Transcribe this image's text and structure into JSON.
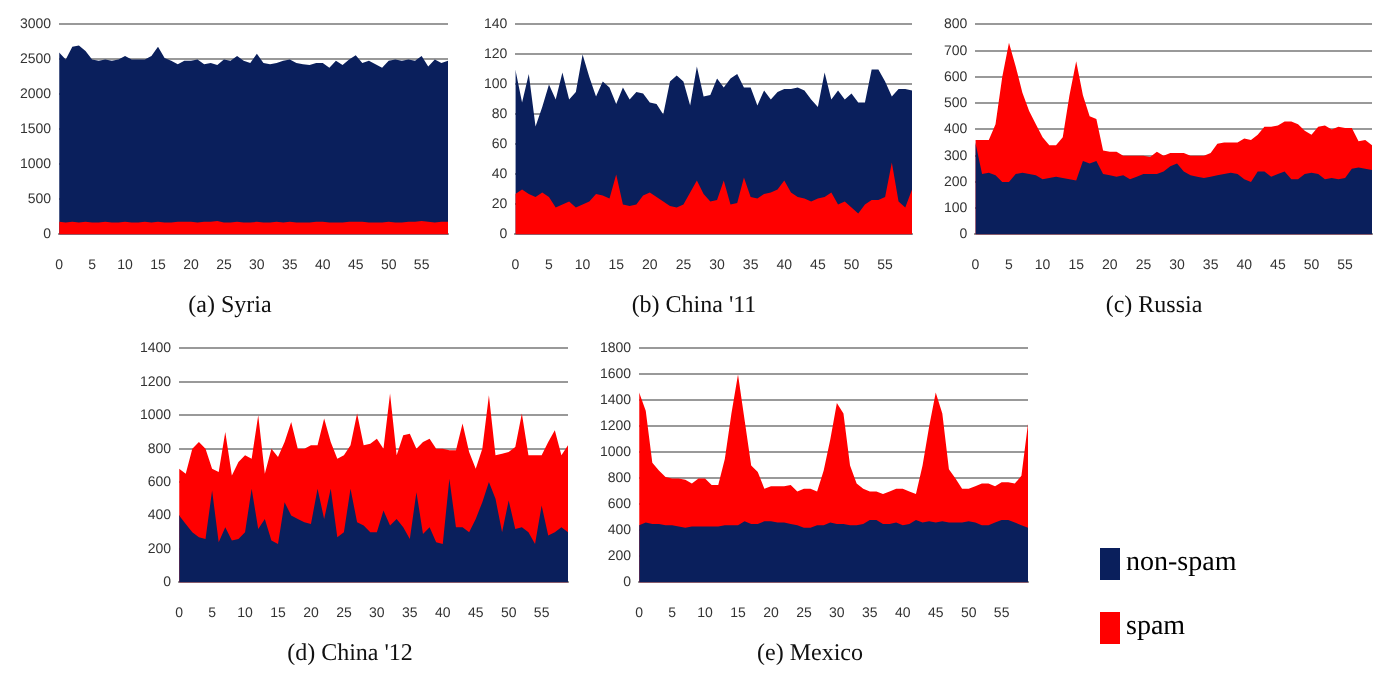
{
  "chart_data": [
    {
      "type": "area",
      "title": "(a) Syria",
      "categories": [
        "0",
        null,
        null,
        null,
        null,
        "5",
        null,
        null,
        null,
        null,
        "10",
        null,
        null,
        null,
        null,
        "15",
        null,
        null,
        null,
        null,
        "20",
        null,
        null,
        null,
        null,
        "25",
        null,
        null,
        null,
        null,
        "30",
        null,
        null,
        null,
        null,
        "35",
        null,
        null,
        null,
        null,
        "40",
        null,
        null,
        null,
        null,
        "45",
        null,
        null,
        null,
        null,
        "50",
        null,
        null,
        null,
        null,
        "55",
        null,
        null,
        null,
        null
      ],
      "ylim": [
        0,
        3000
      ],
      "yticks": [
        0,
        500,
        1000,
        1500,
        2000,
        2500,
        3000
      ],
      "grid": "y",
      "legend": false,
      "series": [
        {
          "color": "#0a1f5c",
          "values": [
            2600,
            2500,
            2680,
            2700,
            2620,
            2500,
            2480,
            2500,
            2480,
            2500,
            2550,
            2500,
            2500,
            2500,
            2550,
            2680,
            2520,
            2480,
            2430,
            2480,
            2480,
            2500,
            2430,
            2450,
            2420,
            2500,
            2480,
            2550,
            2480,
            2450,
            2580,
            2450,
            2430,
            2450,
            2480,
            2500,
            2450,
            2430,
            2420,
            2450,
            2450,
            2380,
            2480,
            2420,
            2500,
            2560,
            2450,
            2480,
            2430,
            2380,
            2480,
            2500,
            2480,
            2500,
            2480,
            2550,
            2400,
            2500,
            2450,
            2480
          ]
        },
        {
          "color": "#ff0000",
          "values": [
            180,
            170,
            180,
            170,
            180,
            170,
            170,
            180,
            170,
            170,
            180,
            170,
            170,
            180,
            170,
            180,
            170,
            170,
            180,
            180,
            180,
            170,
            180,
            180,
            190,
            170,
            170,
            180,
            170,
            170,
            180,
            170,
            170,
            180,
            170,
            180,
            170,
            170,
            170,
            180,
            180,
            170,
            170,
            170,
            180,
            180,
            180,
            170,
            170,
            170,
            180,
            170,
            170,
            180,
            180,
            190,
            180,
            170,
            180,
            180
          ]
        }
      ]
    },
    {
      "type": "area",
      "title": "(b) China '11",
      "categories": [
        "0",
        null,
        null,
        null,
        null,
        "5",
        null,
        null,
        null,
        null,
        "10",
        null,
        null,
        null,
        null,
        "15",
        null,
        null,
        null,
        null,
        "20",
        null,
        null,
        null,
        null,
        "25",
        null,
        null,
        null,
        null,
        "30",
        null,
        null,
        null,
        null,
        "35",
        null,
        null,
        null,
        null,
        "40",
        null,
        null,
        null,
        null,
        "45",
        null,
        null,
        null,
        null,
        "50",
        null,
        null,
        null,
        null,
        "55",
        null,
        null,
        null,
        null
      ],
      "ylim": [
        0,
        140
      ],
      "yticks": [
        0,
        20,
        40,
        60,
        80,
        100,
        120,
        140
      ],
      "grid": "y",
      "legend": false,
      "series": [
        {
          "color": "#0a1f5c",
          "values": [
            110,
            88,
            107,
            72,
            85,
            100,
            90,
            108,
            90,
            95,
            120,
            105,
            92,
            102,
            98,
            87,
            98,
            90,
            95,
            94,
            88,
            87,
            80,
            102,
            106,
            102,
            86,
            112,
            92,
            93,
            104,
            98,
            104,
            107,
            98,
            98,
            86,
            96,
            90,
            95,
            97,
            97,
            98,
            96,
            90,
            85,
            108,
            90,
            96,
            90,
            94,
            88,
            88,
            110,
            110,
            102,
            92,
            97,
            97,
            96
          ]
        },
        {
          "color": "#ff0000",
          "values": [
            27,
            30,
            27,
            25,
            28,
            25,
            18,
            20,
            22,
            18,
            20,
            22,
            27,
            26,
            24,
            40,
            20,
            19,
            20,
            26,
            28,
            25,
            22,
            19,
            18,
            20,
            28,
            36,
            27,
            22,
            23,
            36,
            20,
            21,
            38,
            25,
            24,
            27,
            28,
            30,
            36,
            28,
            25,
            24,
            22,
            24,
            25,
            28,
            20,
            22,
            18,
            14,
            20,
            23,
            23,
            25,
            48,
            22,
            18,
            30
          ]
        }
      ]
    },
    {
      "type": "area",
      "title": "(c) Russia",
      "categories": [
        "0",
        null,
        null,
        null,
        null,
        "5",
        null,
        null,
        null,
        null,
        "10",
        null,
        null,
        null,
        null,
        "15",
        null,
        null,
        null,
        null,
        "20",
        null,
        null,
        null,
        null,
        "25",
        null,
        null,
        null,
        null,
        "30",
        null,
        null,
        null,
        null,
        "35",
        null,
        null,
        null,
        null,
        "40",
        null,
        null,
        null,
        null,
        "45",
        null,
        null,
        null,
        null,
        "50",
        null,
        null,
        null,
        null,
        "55",
        null,
        null,
        null,
        null
      ],
      "ylim": [
        0,
        800
      ],
      "yticks": [
        0,
        100,
        200,
        300,
        400,
        500,
        600,
        700,
        800
      ],
      "grid": "y",
      "legend": false,
      "series": [
        {
          "color": "#0a1f5c",
          "values": [
            350,
            230,
            235,
            225,
            200,
            200,
            230,
            235,
            230,
            225,
            210,
            215,
            220,
            215,
            210,
            205,
            280,
            270,
            280,
            230,
            225,
            220,
            225,
            210,
            220,
            230,
            230,
            230,
            240,
            260,
            270,
            240,
            225,
            220,
            215,
            220,
            225,
            230,
            235,
            230,
            210,
            200,
            240,
            240,
            220,
            230,
            240,
            210,
            210,
            230,
            235,
            230,
            210,
            215,
            210,
            215,
            250,
            255,
            250,
            245
          ]
        },
        {
          "color": "#ff0000",
          "values": [
            360,
            360,
            360,
            420,
            600,
            730,
            640,
            540,
            470,
            420,
            370,
            340,
            340,
            370,
            530,
            660,
            530,
            450,
            440,
            320,
            315,
            315,
            300,
            300,
            300,
            300,
            295,
            315,
            300,
            310,
            310,
            310,
            300,
            300,
            300,
            310,
            345,
            350,
            350,
            350,
            365,
            360,
            380,
            410,
            410,
            415,
            430,
            430,
            420,
            395,
            380,
            410,
            415,
            400,
            410,
            405,
            405,
            355,
            360,
            340
          ]
        }
      ]
    },
    {
      "type": "area",
      "title": "(d) China '12",
      "categories": [
        "0",
        null,
        null,
        null,
        null,
        "5",
        null,
        null,
        null,
        null,
        "10",
        null,
        null,
        null,
        null,
        "15",
        null,
        null,
        null,
        null,
        "20",
        null,
        null,
        null,
        null,
        "25",
        null,
        null,
        null,
        null,
        "30",
        null,
        null,
        null,
        null,
        "35",
        null,
        null,
        null,
        null,
        "40",
        null,
        null,
        null,
        null,
        "45",
        null,
        null,
        null,
        null,
        "50",
        null,
        null,
        null,
        null,
        "55",
        null,
        null,
        null,
        null
      ],
      "ylim": [
        0,
        1400
      ],
      "yticks": [
        0,
        200,
        400,
        600,
        800,
        1000,
        1200,
        1400
      ],
      "grid": "y",
      "legend": false,
      "series": [
        {
          "color": "#0a1f5c",
          "values": [
            400,
            350,
            300,
            270,
            260,
            550,
            240,
            330,
            250,
            260,
            300,
            560,
            320,
            380,
            250,
            230,
            480,
            400,
            380,
            360,
            350,
            560,
            380,
            560,
            270,
            300,
            560,
            360,
            340,
            300,
            300,
            430,
            340,
            380,
            330,
            260,
            540,
            290,
            330,
            240,
            230,
            620,
            330,
            330,
            300,
            380,
            480,
            600,
            500,
            300,
            490,
            320,
            330,
            300,
            230,
            460,
            280,
            300,
            330,
            300
          ]
        },
        {
          "color": "#ff0000",
          "values": [
            680,
            650,
            800,
            840,
            800,
            680,
            660,
            900,
            640,
            720,
            760,
            740,
            1000,
            650,
            800,
            750,
            840,
            960,
            800,
            800,
            820,
            820,
            980,
            840,
            740,
            760,
            820,
            1010,
            820,
            830,
            860,
            800,
            1130,
            760,
            880,
            890,
            800,
            840,
            860,
            800,
            800,
            790,
            790,
            950,
            780,
            680,
            800,
            1120,
            760,
            770,
            780,
            810,
            1010,
            760,
            760,
            760,
            840,
            910,
            760,
            820
          ]
        }
      ]
    },
    {
      "type": "area",
      "title": "(e) Mexico",
      "categories": [
        "0",
        null,
        null,
        null,
        null,
        "5",
        null,
        null,
        null,
        null,
        "10",
        null,
        null,
        null,
        null,
        "15",
        null,
        null,
        null,
        null,
        "20",
        null,
        null,
        null,
        null,
        "25",
        null,
        null,
        null,
        null,
        "30",
        null,
        null,
        null,
        null,
        "35",
        null,
        null,
        null,
        null,
        "40",
        null,
        null,
        null,
        null,
        "45",
        null,
        null,
        null,
        null,
        "50",
        null,
        null,
        null,
        null,
        "55",
        null,
        null,
        null,
        null
      ],
      "ylim": [
        0,
        1800
      ],
      "yticks": [
        0,
        200,
        400,
        600,
        800,
        1000,
        1200,
        1400,
        1600,
        1800
      ],
      "grid": "y",
      "legend": "right",
      "series": [
        {
          "name": "non-spam",
          "color": "#0a1f5c",
          "values": [
            440,
            460,
            450,
            450,
            440,
            440,
            430,
            420,
            430,
            430,
            430,
            430,
            430,
            440,
            440,
            440,
            470,
            450,
            450,
            470,
            470,
            460,
            460,
            450,
            440,
            420,
            420,
            440,
            440,
            460,
            450,
            450,
            440,
            440,
            450,
            480,
            480,
            450,
            450,
            460,
            440,
            450,
            480,
            460,
            470,
            460,
            470,
            460,
            460,
            460,
            470,
            460,
            440,
            440,
            460,
            480,
            480,
            460,
            440,
            420
          ]
        },
        {
          "name": "spam",
          "color": "#ff0000",
          "values": [
            1460,
            1320,
            920,
            860,
            810,
            800,
            800,
            790,
            760,
            800,
            800,
            750,
            750,
            950,
            1300,
            1600,
            1250,
            900,
            850,
            720,
            740,
            740,
            740,
            750,
            700,
            720,
            720,
            700,
            860,
            1100,
            1380,
            1300,
            900,
            760,
            720,
            700,
            700,
            680,
            700,
            720,
            720,
            700,
            680,
            900,
            1200,
            1460,
            1300,
            870,
            800,
            720,
            720,
            740,
            760,
            760,
            740,
            770,
            770,
            760,
            820,
            1220
          ]
        }
      ]
    }
  ]
}
